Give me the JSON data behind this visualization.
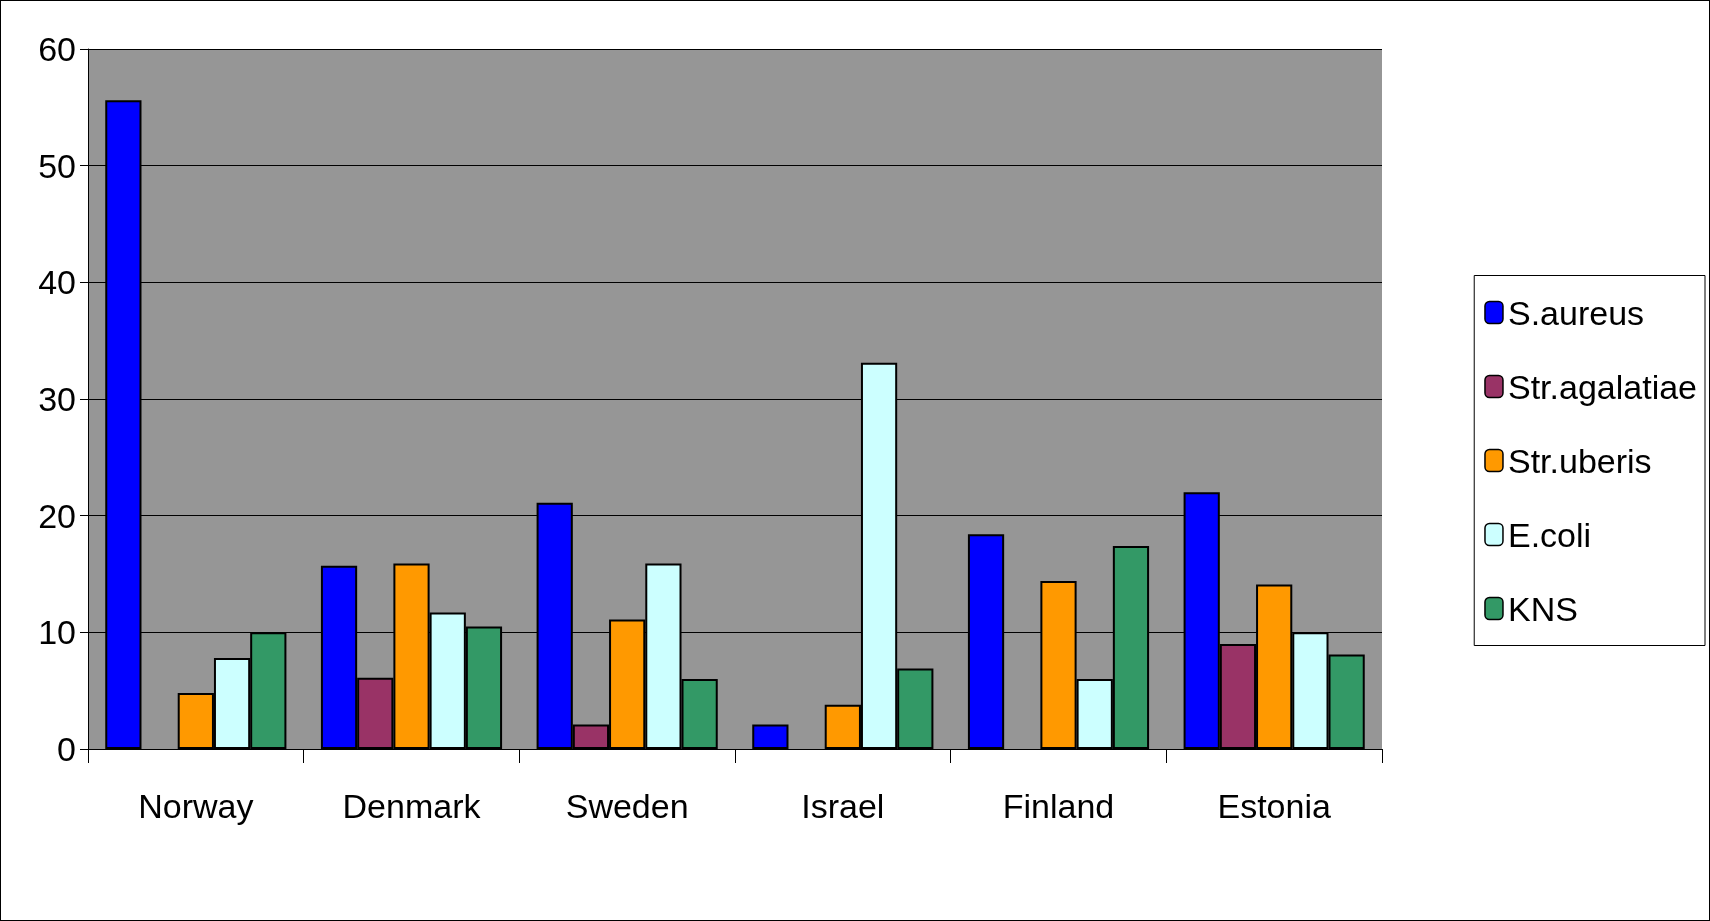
{
  "chart_data": {
    "type": "bar",
    "categories": [
      "Norway",
      "Denmark",
      "Sweden",
      "Israel",
      "Finland",
      "Estonia"
    ],
    "series": [
      {
        "name": "S.aureus",
        "color": "#0000ff",
        "values": [
          55.6,
          15.7,
          21.1,
          2.1,
          18.4,
          22.0
        ]
      },
      {
        "name": "Str.agalatiae",
        "color": "#993366",
        "values": [
          null,
          6.1,
          2.1,
          null,
          null,
          9.0
        ]
      },
      {
        "name": "Str.uberis",
        "color": "#ff9900",
        "values": [
          4.8,
          15.9,
          11.1,
          3.8,
          14.4,
          14.1
        ]
      },
      {
        "name": "E.coli",
        "color": "#ccffff",
        "values": [
          7.8,
          11.7,
          15.9,
          33.1,
          6.0,
          10.0
        ]
      },
      {
        "name": "KNS",
        "color": "#339966",
        "values": [
          10.0,
          10.5,
          6.0,
          6.9,
          17.4,
          8.1
        ]
      }
    ],
    "ylim": [
      0,
      60
    ],
    "yticks": [
      0,
      10,
      20,
      30,
      40,
      50,
      60
    ],
    "grid": "y",
    "legend": "right"
  }
}
